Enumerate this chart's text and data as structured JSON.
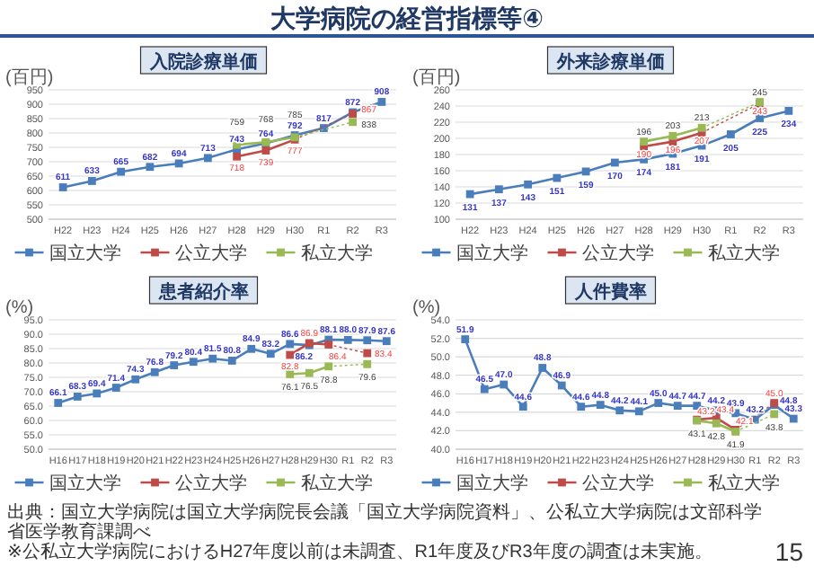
{
  "chart_data": [
    {
      "type": "line",
      "title": "入院診療単価",
      "ylabel": "(百円)",
      "annotations": [
        "大学病院の経営指標等④"
      ],
      "categories": [
        "H22",
        "H23",
        "H24",
        "H25",
        "H26",
        "H27",
        "H28",
        "H29",
        "H30",
        "R1",
        "R2",
        "R3"
      ],
      "ylim": [
        500,
        950
      ],
      "yticks": [
        500,
        550,
        600,
        650,
        700,
        750,
        800,
        850,
        900,
        950
      ],
      "grid": "y",
      "legend": "bottom",
      "marker": "square",
      "data_labels": true,
      "series": [
        {
          "name": "国立大学",
          "color": "#4a7ebb",
          "values": [
            611,
            633,
            665,
            682,
            694,
            713,
            743,
            764,
            792,
            817,
            872,
            908
          ]
        },
        {
          "name": "公立大学",
          "color": "#be4b48",
          "values": [
            null,
            null,
            null,
            null,
            null,
            null,
            718,
            739,
            777,
            null,
            867,
            null
          ]
        },
        {
          "name": "私立大学",
          "color": "#98b954",
          "values": [
            null,
            null,
            null,
            null,
            null,
            null,
            759,
            768,
            785,
            null,
            838,
            null
          ]
        }
      ]
    },
    {
      "type": "line",
      "title": "外来診療単価",
      "ylabel": "(百円)",
      "categories": [
        "H22",
        "H23",
        "H24",
        "H25",
        "H26",
        "H27",
        "H28",
        "H29",
        "H30",
        "R1",
        "R2",
        "R3"
      ],
      "ylim": [
        100,
        260
      ],
      "yticks": [
        100,
        120,
        140,
        160,
        180,
        200,
        220,
        240,
        260
      ],
      "grid": "y",
      "legend": "bottom",
      "marker": "square",
      "data_labels": true,
      "series": [
        {
          "name": "国立大学",
          "color": "#4a7ebb",
          "values": [
            131,
            137,
            143,
            151,
            159,
            170,
            174,
            181,
            191,
            205,
            225,
            234
          ]
        },
        {
          "name": "公立大学",
          "color": "#be4b48",
          "values": [
            null,
            null,
            null,
            null,
            null,
            null,
            190,
            196,
            207,
            null,
            243,
            null
          ]
        },
        {
          "name": "私立大学",
          "color": "#98b954",
          "values": [
            null,
            null,
            null,
            null,
            null,
            null,
            196,
            203,
            213,
            null,
            245,
            null
          ]
        }
      ]
    },
    {
      "type": "line",
      "title": "患者紹介率",
      "ylabel": "(%)",
      "categories": [
        "H16",
        "H17",
        "H18",
        "H19",
        "H20",
        "H21",
        "H22",
        "H23",
        "H24",
        "H25",
        "H26",
        "H27",
        "H28",
        "H29",
        "H30",
        "R1",
        "R2",
        "R3"
      ],
      "ylim": [
        50,
        95
      ],
      "yticks": [
        {
          "value": 50,
          "label": "50.0"
        },
        {
          "value": 55,
          "label": "55.0"
        },
        {
          "value": 60,
          "label": "60.0"
        },
        {
          "value": 65,
          "label": "65.0"
        },
        {
          "value": 70,
          "label": "70.0"
        },
        {
          "value": 75,
          "label": "75.0"
        },
        {
          "value": 80,
          "label": "80.0"
        },
        {
          "value": 85,
          "label": "85.0"
        },
        {
          "value": 90,
          "label": "90.0"
        },
        {
          "value": 95,
          "label": "95.0"
        }
      ],
      "grid": "y",
      "legend": "bottom",
      "marker": "square",
      "series": [
        {
          "name": "国立大学",
          "color": "#4a7ebb",
          "values": [
            66.1,
            68.3,
            69.4,
            71.4,
            74.3,
            76.8,
            79.2,
            80.4,
            81.5,
            80.8,
            84.9,
            83.2,
            86.6,
            86.2,
            88.1,
            88.0,
            87.9,
            87.6
          ],
          "value_labels": [
            "66.1",
            "68.3",
            "69.4",
            "71.4",
            "74.3",
            "76.8",
            "79.2",
            "80.4",
            "81.5",
            "80.8",
            "84.9",
            "83.2",
            "86.6",
            "86.2",
            "88.1",
            "88.0",
            "87.9",
            "87.6"
          ]
        },
        {
          "name": "公立大学",
          "color": "#be4b48",
          "values": [
            null,
            null,
            null,
            null,
            null,
            null,
            null,
            null,
            null,
            null,
            null,
            null,
            82.8,
            86.9,
            86.4,
            null,
            83.4,
            null
          ],
          "value_labels": [
            null,
            null,
            null,
            null,
            null,
            null,
            null,
            null,
            null,
            null,
            null,
            null,
            "82.8",
            "86.9",
            "86.4",
            null,
            "83.4",
            null
          ]
        },
        {
          "name": "私立大学",
          "color": "#98b954",
          "values": [
            null,
            null,
            null,
            null,
            null,
            null,
            null,
            null,
            null,
            null,
            null,
            null,
            76.1,
            76.5,
            78.8,
            null,
            79.6,
            null
          ],
          "value_labels": [
            null,
            null,
            null,
            null,
            null,
            null,
            null,
            null,
            null,
            null,
            null,
            null,
            "76.1",
            "76.5",
            "78.8",
            null,
            "79.6",
            null
          ]
        }
      ]
    },
    {
      "type": "line",
      "title": "人件費率",
      "ylabel": "(%)",
      "annotations": [
        "出典：国立大学病院は国立大学病院長会議「国立大学病院資料」、公私立大学病院は文部科学省医学教育課調べ",
        "※公私立大学病院におけるH27年度以前は未調査、R1年度及びR3年度の調査は未実施。",
        "15"
      ],
      "categories": [
        "H16",
        "H17",
        "H18",
        "H19",
        "H20",
        "H21",
        "H22",
        "H23",
        "H24",
        "H25",
        "H26",
        "H27",
        "H28",
        "H29",
        "H30",
        "R1",
        "R2",
        "R3"
      ],
      "ylim": [
        40,
        54
      ],
      "yticks": [
        {
          "value": 40,
          "label": "40.0"
        },
        {
          "value": 42,
          "label": "42.0"
        },
        {
          "value": 44,
          "label": "44.0"
        },
        {
          "value": 46,
          "label": "46.0"
        },
        {
          "value": 48,
          "label": "48.0"
        },
        {
          "value": 50,
          "label": "50.0"
        },
        {
          "value": 52,
          "label": "52.0"
        },
        {
          "value": 54,
          "label": "54.0"
        }
      ],
      "grid": "y",
      "legend": "bottom",
      "marker": "square",
      "series": [
        {
          "name": "国立大学",
          "color": "#4a7ebb",
          "values": [
            51.9,
            46.5,
            47.0,
            44.6,
            48.8,
            46.9,
            44.6,
            44.8,
            44.2,
            44.1,
            45.0,
            44.7,
            44.7,
            44.2,
            43.9,
            43.2,
            44.8,
            43.3
          ],
          "value_labels": [
            "51.9",
            "46.5",
            "47.0",
            "44.6",
            "48.8",
            "46.9",
            "44.6",
            "44.8",
            "44.2",
            "44.1",
            "45.0",
            "44.7",
            "44.7",
            "44.2",
            "43.9",
            "43.2",
            "44.8",
            "43.3"
          ]
        },
        {
          "name": "公立大学",
          "color": "#be4b48",
          "values": [
            null,
            null,
            null,
            null,
            null,
            null,
            null,
            null,
            null,
            null,
            null,
            null,
            43.2,
            43.4,
            42.1,
            null,
            45.0,
            null
          ],
          "value_labels": [
            null,
            null,
            null,
            null,
            null,
            null,
            null,
            null,
            null,
            null,
            null,
            null,
            "43.2",
            "43.4",
            "42.1",
            null,
            "45.0",
            null
          ]
        },
        {
          "name": "私立大学",
          "color": "#98b954",
          "values": [
            null,
            null,
            null,
            null,
            null,
            null,
            null,
            null,
            null,
            null,
            null,
            null,
            43.1,
            42.8,
            41.9,
            null,
            43.8,
            null
          ],
          "value_labels": [
            null,
            null,
            null,
            null,
            null,
            null,
            null,
            null,
            null,
            null,
            null,
            null,
            "43.1",
            "42.8",
            "41.9",
            null,
            "43.8",
            null
          ]
        }
      ]
    }
  ]
}
